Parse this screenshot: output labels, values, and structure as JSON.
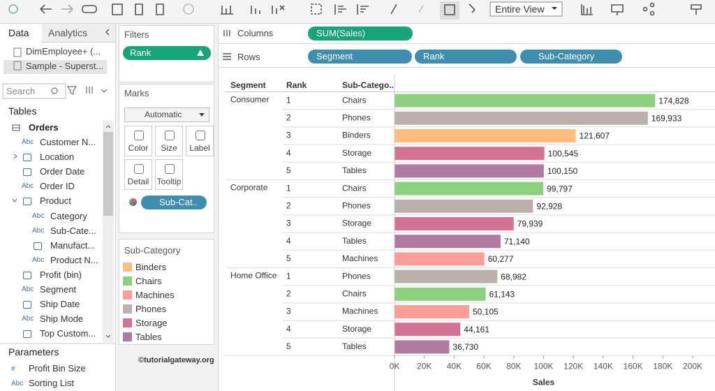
{
  "toolbar": {
    "fit": "Entire View"
  },
  "data_pane": {
    "tabs": [
      "Data",
      "Analytics"
    ],
    "sources": [
      "DimEmployee+ (...",
      "Sample - Superst..."
    ],
    "search": "Search",
    "tables_title": "Tables",
    "table": {
      "name": "Orders",
      "fields": [
        {
          "icon": "Abc",
          "name": "Customer N..."
        },
        {
          "name": "Location"
        },
        {
          "name": "Order Date"
        },
        {
          "icon": "Abc",
          "name": "Order ID"
        },
        {
          "name": "Product",
          "children": [
            {
              "icon": "Abc",
              "name": "Category"
            },
            {
              "icon": "Abc",
              "name": "Sub-Cate..."
            },
            {
              "name": "Manufact..."
            },
            {
              "icon": "Abc",
              "name": "Product N..."
            }
          ]
        },
        {
          "name": "Profit (bin)"
        },
        {
          "icon": "Abc",
          "name": "Segment"
        },
        {
          "name": "Ship Date"
        },
        {
          "icon": "Abc",
          "name": "Ship Mode"
        },
        {
          "name": "Top Custom..."
        }
      ]
    },
    "parameters_title": "Parameters",
    "parameters": [
      {
        "icon": "#",
        "name": "Profit Bin Size"
      },
      {
        "icon": "Abc",
        "name": "Sorting List"
      }
    ]
  },
  "filters": {
    "title": "Filters",
    "pills": [
      "Rank"
    ]
  },
  "marks": {
    "title": "Marks",
    "type": "Automatic",
    "buttons": [
      "Color",
      "Size",
      "Label",
      "Detail",
      "Tooltip"
    ],
    "pill": "Sub-Cat.."
  },
  "watermark": "©tutorialgateway.org",
  "shelves": {
    "columns_label": "Columns",
    "columns": [
      "SUM(Sales)"
    ],
    "rows_label": "Rows",
    "rows": [
      "Segment",
      "Rank",
      "Sub-Category"
    ]
  },
  "chart_data": {
    "type": "bar",
    "headers": [
      "Segment",
      "Rank",
      "Sub-Catego.."
    ],
    "groups": [
      {
        "segment": "Consumer",
        "ranks": [
          1,
          2,
          3,
          4,
          5
        ],
        "categories": [
          "Chairs",
          "Phones",
          "Binders",
          "Storage",
          "Tables"
        ],
        "values": [
          174828,
          169933,
          121607,
          100545,
          100150
        ],
        "value_labels": [
          "174,828",
          "169,933",
          "121,607",
          "100,545",
          "100,150"
        ]
      },
      {
        "segment": "Corporate",
        "ranks": [
          1,
          2,
          3,
          4,
          5
        ],
        "categories": [
          "Chairs",
          "Phones",
          "Storage",
          "Tables",
          "Machines"
        ],
        "values": [
          99797,
          92928,
          79939,
          71140,
          60277
        ],
        "value_labels": [
          "99,797",
          "92,928",
          "79,939",
          "71,140",
          "60,277"
        ]
      },
      {
        "segment": "Home Office",
        "ranks": [
          1,
          2,
          3,
          4,
          5
        ],
        "categories": [
          "Phones",
          "Chairs",
          "Machines",
          "Storage",
          "Tables"
        ],
        "values": [
          68982,
          61143,
          50105,
          44161,
          36730
        ],
        "value_labels": [
          "68,982",
          "61,143",
          "50,105",
          "44,161",
          "36,730"
        ]
      }
    ],
    "x_label": "Sales",
    "xlim": [
      0,
      200000
    ],
    "xticks": [
      {
        "value": 0,
        "label": "0K"
      },
      {
        "value": 20000,
        "label": "20K"
      },
      {
        "value": 40000,
        "label": "40K"
      },
      {
        "value": 60000,
        "label": "60K"
      },
      {
        "value": 80000,
        "label": "80K"
      },
      {
        "value": 100000,
        "label": "100K"
      },
      {
        "value": 120000,
        "label": "120K"
      },
      {
        "value": 140000,
        "label": "140K"
      },
      {
        "value": 160000,
        "label": "160K"
      },
      {
        "value": 180000,
        "label": "180K"
      },
      {
        "value": 200000,
        "label": "200K"
      }
    ],
    "legend": {
      "title": "Sub-Category",
      "items": [
        {
          "name": "Binders",
          "color": "#ffbe7d"
        },
        {
          "name": "Chairs",
          "color": "#8cd17d"
        },
        {
          "name": "Machines",
          "color": "#ff9d9a"
        },
        {
          "name": "Phones",
          "color": "#bab0ac"
        },
        {
          "name": "Storage",
          "color": "#d37295"
        },
        {
          "name": "Tables",
          "color": "#b07aa1"
        }
      ]
    }
  }
}
